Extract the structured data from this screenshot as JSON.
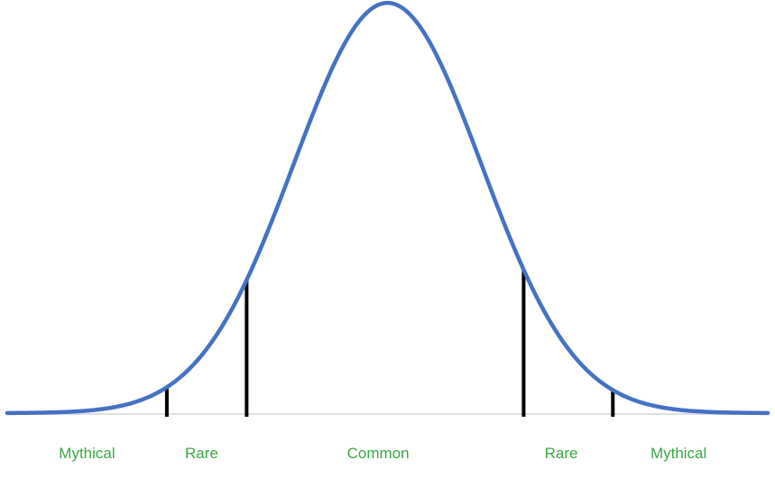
{
  "chart_data": {
    "type": "line",
    "title": "",
    "xlabel": "",
    "ylabel": "",
    "grid": false,
    "xlim": [
      -4.05,
      4.05
    ],
    "ylim": [
      0,
      0.4
    ],
    "series": [
      {
        "kind": "normal-pdf",
        "mean": 0,
        "std": 1,
        "x_range": [
          -4.05,
          4.05
        ],
        "color": "#4472c4"
      }
    ],
    "boundaries": [
      -2.35,
      -1.5,
      1.45,
      2.4
    ],
    "boundary_color": "#000000",
    "regions": [
      {
        "label": "Mythical",
        "x": -3.2
      },
      {
        "label": "Rare",
        "x": -1.98
      },
      {
        "label": "Common",
        "x": -0.1
      },
      {
        "label": "Rare",
        "x": 1.85
      },
      {
        "label": "Mythical",
        "x": 3.1
      }
    ],
    "label_color": "#3aa845",
    "baseline_color": "#e0e0e0"
  }
}
